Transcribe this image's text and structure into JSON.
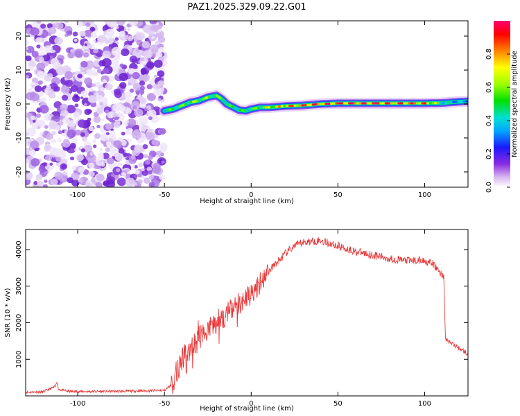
{
  "chart_data": [
    {
      "type": "heatmap",
      "title": "PAZ1.2025.329.09.22.G01",
      "xlabel": "Height of straight line (km)",
      "ylabel": "Frequency (Hz)",
      "xlim": [
        -130,
        125
      ],
      "ylim": [
        -24.5,
        24.5
      ],
      "x_ticks": [
        -100,
        -50,
        0,
        50,
        100
      ],
      "y_ticks": [
        -20,
        -10,
        0,
        10,
        20
      ],
      "noise_region_x": [
        -130,
        -50
      ],
      "ridge": {
        "x": [
          -50,
          -45,
          -40,
          -35,
          -30,
          -25,
          -20,
          -17,
          -14,
          -10,
          -7,
          -3,
          0,
          5,
          10,
          15,
          20,
          25,
          30,
          40,
          50,
          60,
          70,
          80,
          90,
          100,
          110,
          118,
          125
        ],
        "freq": [
          -2.0,
          -1.5,
          -0.5,
          0.5,
          1.0,
          2.0,
          2.5,
          1.5,
          0.0,
          -1.0,
          -1.8,
          -2.0,
          -1.5,
          -1.0,
          -1.0,
          -0.8,
          -0.6,
          -0.5,
          -0.4,
          0.0,
          0.2,
          0.2,
          0.2,
          0.2,
          0.2,
          0.2,
          0.3,
          0.6,
          0.8
        ],
        "amplitude": [
          0.5,
          0.6,
          0.6,
          0.65,
          0.65,
          0.65,
          0.6,
          0.6,
          0.55,
          0.55,
          0.55,
          0.55,
          0.55,
          0.65,
          0.75,
          0.8,
          0.85,
          0.9,
          0.95,
          0.95,
          1.0,
          1.0,
          1.0,
          0.95,
          0.95,
          0.9,
          0.5,
          0.4,
          0.4
        ]
      },
      "colorbar": {
        "label": "Normalized spectral amplitude",
        "ticks": [
          0.0,
          0.2,
          0.4,
          0.6,
          0.8
        ],
        "range": [
          0,
          1
        ]
      }
    },
    {
      "type": "line",
      "xlabel": "Height of straight line (km)",
      "ylabel": "SNR (10 * v/v)",
      "xlim": [
        -130,
        125
      ],
      "ylim": [
        0,
        4550
      ],
      "x_ticks": [
        -100,
        -50,
        0,
        50,
        100
      ],
      "y_ticks": [
        1000,
        2000,
        3000,
        4000
      ],
      "color": "#e83a3a",
      "series": [
        {
          "name": "SNR",
          "x": [
            -130,
            -120,
            -113,
            -112,
            -111,
            -105,
            -90,
            -70,
            -50,
            -46,
            -44,
            -42,
            -40,
            -35,
            -30,
            -25,
            -20,
            -15,
            -10,
            -5,
            0,
            5,
            10,
            15,
            20,
            25,
            30,
            40,
            50,
            60,
            70,
            80,
            90,
            100,
            105,
            110,
            111,
            112,
            115,
            120,
            125
          ],
          "y": [
            100,
            110,
            250,
            400,
            180,
            120,
            120,
            130,
            150,
            300,
            500,
            800,
            1000,
            1300,
            1600,
            1800,
            2000,
            2200,
            2400,
            2600,
            2800,
            3100,
            3400,
            3650,
            3900,
            4100,
            4200,
            4250,
            4100,
            3950,
            3850,
            3750,
            3700,
            3700,
            3600,
            3300,
            3300,
            1550,
            1450,
            1300,
            1150
          ]
        }
      ]
    }
  ]
}
